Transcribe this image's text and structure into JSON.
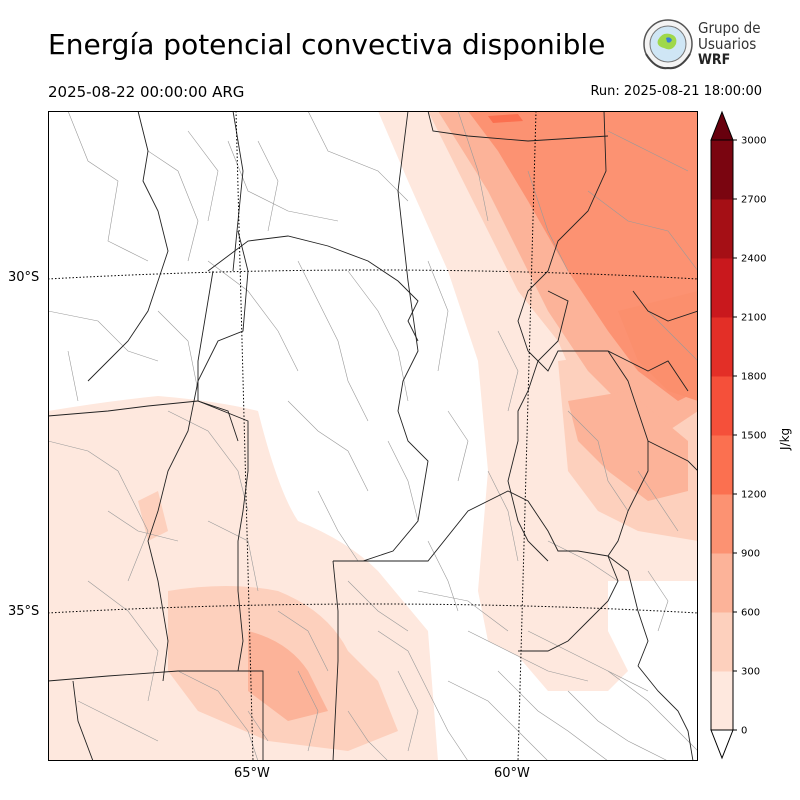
{
  "title": "Energía potencial convectiva disponible",
  "valid_time": "2025-08-22 00:00:00 ARG",
  "run_time": "Run: 2025-08-21 18:00:00",
  "logo": {
    "line1": "Grupo de",
    "line2": "Usuarios",
    "line3": "WRF"
  },
  "latitude_labels": [
    "30°S",
    "35°S"
  ],
  "longitude_labels": [
    "65°W",
    "60°W"
  ],
  "colorbar": {
    "unit": "J/kg",
    "ticks": [
      "0",
      "300",
      "600",
      "900",
      "1200",
      "1500",
      "1800",
      "2100",
      "2400",
      "2700",
      "3000"
    ],
    "colors": [
      "#fee8de",
      "#fdd0bd",
      "#fcb399",
      "#fc9272",
      "#fb7050",
      "#f5503a",
      "#e32f27",
      "#c9181d",
      "#a50f15",
      "#7a0510"
    ],
    "under_color": "#ffffff",
    "over_color": "#67000d"
  }
}
